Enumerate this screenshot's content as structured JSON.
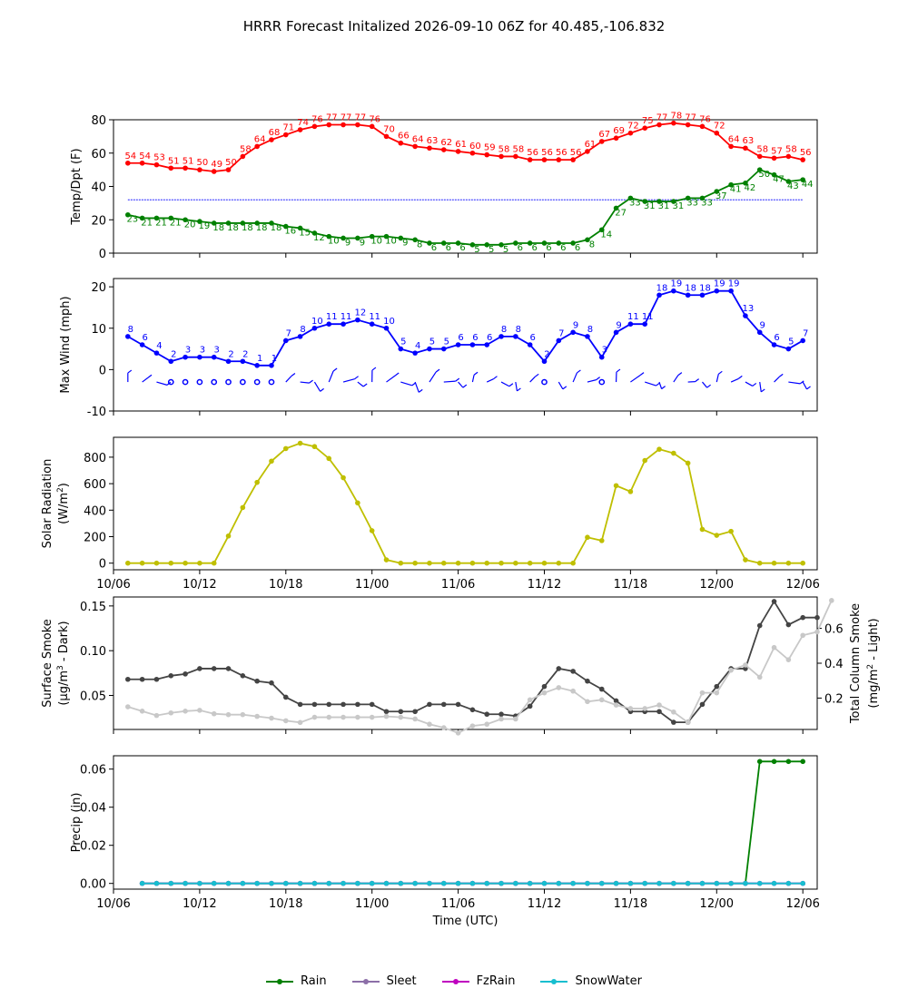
{
  "title": "HRRR Forecast Initalized 2026-09-10 06Z for 40.485,-106.832",
  "colors": {
    "temp": "#ff0000",
    "dew": "#008000",
    "wind": "#0000ff",
    "solar": "#bfbf00",
    "smoke_dark": "#444444",
    "smoke_light": "#c8c8c8",
    "rain": "#008000",
    "sleet": "#8c6fa8",
    "fzrain": "#bf00bf",
    "snow": "#17becf"
  },
  "chart_data": [
    {
      "type": "line",
      "ylabel": "Temp/Dpt (F)",
      "ylim": [
        0,
        80
      ],
      "yticks": [
        0,
        20,
        40,
        60,
        80
      ],
      "xlim": [
        0,
        49
      ],
      "xticks": [
        {
          "x": 0,
          "label": "10/06"
        },
        {
          "x": 6,
          "label": "10/12"
        },
        {
          "x": 12,
          "label": "10/18"
        },
        {
          "x": 18,
          "label": "11/00"
        },
        {
          "x": 24,
          "label": "11/06"
        },
        {
          "x": 30,
          "label": "11/12"
        },
        {
          "x": 36,
          "label": "11/18"
        },
        {
          "x": 42,
          "label": "12/00"
        },
        {
          "x": 48,
          "label": "12/06"
        }
      ],
      "freezing_line": 32,
      "series": [
        {
          "key": "temp",
          "start": 1,
          "values": [
            54,
            54,
            53,
            51,
            51,
            50,
            49,
            50,
            58,
            64,
            68,
            71,
            74,
            76,
            77,
            77,
            77,
            76,
            70,
            66,
            64,
            63,
            62,
            61,
            60,
            59,
            58,
            58,
            56,
            56,
            56,
            56,
            61,
            67,
            69,
            72,
            75,
            77,
            78,
            77,
            76,
            72,
            64,
            63,
            58,
            57,
            58,
            56
          ]
        },
        {
          "key": "dew",
          "start": 1,
          "values": [
            23,
            21,
            21,
            21,
            20,
            19,
            18,
            18,
            18,
            18,
            18,
            16,
            15,
            12,
            10,
            9,
            9,
            10,
            10,
            9,
            8,
            6,
            6,
            6,
            5,
            5,
            5,
            6,
            6,
            6,
            6,
            6,
            8,
            14,
            27,
            33,
            31,
            31,
            31,
            33,
            33,
            37,
            41,
            42,
            50,
            47,
            43,
            44
          ]
        }
      ]
    },
    {
      "type": "line",
      "ylabel": "Max Wind (mph)",
      "ylim": [
        -10,
        22
      ],
      "yticks": [
        -10,
        0,
        10,
        20
      ],
      "xlim": [
        0,
        49
      ],
      "series": [
        {
          "key": "wind",
          "start": 1,
          "values": [
            8,
            6,
            4,
            2,
            3,
            3,
            3,
            2,
            2,
            1,
            1,
            7,
            8,
            10,
            11,
            11,
            12,
            11,
            10,
            5,
            4,
            5,
            5,
            6,
            6,
            6,
            8,
            8,
            6,
            2,
            7,
            9,
            8,
            3,
            9,
            11,
            11,
            18,
            19,
            18,
            18,
            19,
            19,
            13,
            9,
            6,
            5,
            7
          ]
        }
      ],
      "barbs_y": -3
    },
    {
      "type": "line",
      "ylabel": "Solar Radiation",
      "ylabel2": "(W/m",
      "ylabel2_sup": "2",
      "ylabel2_end": ")",
      "ylim": [
        -50,
        950
      ],
      "yticks": [
        0,
        200,
        400,
        600,
        800
      ],
      "xlim": [
        0,
        49
      ],
      "series": [
        {
          "key": "solar",
          "start": 1,
          "values": [
            0,
            0,
            0,
            0,
            0,
            0,
            0,
            205,
            420,
            610,
            770,
            865,
            905,
            880,
            790,
            645,
            455,
            245,
            25,
            0,
            0,
            0,
            0,
            0,
            0,
            0,
            0,
            0,
            0,
            0,
            0,
            0,
            195,
            170,
            585,
            540,
            775,
            860,
            830,
            755,
            255,
            210,
            240,
            25,
            0,
            0,
            0,
            0
          ]
        }
      ]
    },
    {
      "type": "line",
      "ylabel": "Surface Smoke",
      "ylabel2": "(μg/m",
      "ylabel2_sup": "3",
      "ylabel2_end": " - Dark)",
      "ylabel_right": "Total Column Smoke",
      "ylabel_right2": "(mg/m",
      "ylabel_right2_sup": "2",
      "ylabel_right2_end": " - Light)",
      "ylim": [
        0.012,
        0.16
      ],
      "yticks": [
        0.05,
        0.1,
        0.15
      ],
      "ylim_right": [
        0.02,
        0.78
      ],
      "yticks_right": [
        0.2,
        0.4,
        0.6
      ],
      "xlim": [
        0,
        49
      ],
      "series": [
        {
          "key": "smoke_dark",
          "start": 1,
          "values": [
            0.068,
            0.068,
            0.068,
            0.072,
            0.074,
            0.08,
            0.08,
            0.08,
            0.072,
            0.066,
            0.064,
            0.048,
            0.04,
            0.04,
            0.04,
            0.04,
            0.04,
            0.04,
            0.032,
            0.032,
            0.032,
            0.04,
            0.04,
            0.04,
            0.034,
            0.029,
            0.029,
            0.027,
            0.038,
            0.06,
            0.08,
            0.077,
            0.066,
            0.057,
            0.044,
            0.032,
            0.032,
            0.032,
            0.02,
            0.02,
            0.04,
            0.06,
            0.08,
            0.08,
            0.128,
            0.155,
            0.129,
            0.137,
            0.137
          ]
        },
        {
          "key": "smoke_light",
          "axis": "right",
          "start": 1,
          "values": [
            0.15,
            0.125,
            0.1,
            0.115,
            0.125,
            0.13,
            0.11,
            0.105,
            0.105,
            0.095,
            0.085,
            0.07,
            0.06,
            0.09,
            0.09,
            0.09,
            0.09,
            0.09,
            0.095,
            0.09,
            0.08,
            0.05,
            0.03,
            0.0,
            0.04,
            0.05,
            0.08,
            0.08,
            0.19,
            0.23,
            0.26,
            0.24,
            0.18,
            0.19,
            0.16,
            0.14,
            0.14,
            0.16,
            0.12,
            0.06,
            0.23,
            0.23,
            0.36,
            0.39,
            0.32,
            0.49,
            0.42,
            0.56,
            0.58,
            0.76
          ]
        }
      ]
    },
    {
      "type": "line",
      "ylabel": "Precip (in)",
      "xlabel": "Time (UTC)",
      "ylim": [
        -0.003,
        0.067
      ],
      "yticks": [
        0.0,
        0.02,
        0.04,
        0.06
      ],
      "xlim": [
        0,
        49
      ],
      "series": [
        {
          "key": "rain",
          "name": "Rain",
          "start": 2,
          "values": [
            0,
            0,
            0,
            0,
            0,
            0,
            0,
            0,
            0,
            0,
            0,
            0,
            0,
            0,
            0,
            0,
            0,
            0,
            0,
            0,
            0,
            0,
            0,
            0,
            0,
            0,
            0,
            0,
            0,
            0,
            0,
            0,
            0,
            0,
            0,
            0,
            0,
            0,
            0,
            0,
            0,
            0,
            0,
            0.064,
            0.064,
            0.064,
            0.064
          ]
        },
        {
          "key": "sleet",
          "name": "Sleet",
          "start": 2,
          "values": [
            0,
            0,
            0,
            0,
            0,
            0,
            0,
            0,
            0,
            0,
            0,
            0,
            0,
            0,
            0,
            0,
            0,
            0,
            0,
            0,
            0,
            0,
            0,
            0,
            0,
            0,
            0,
            0,
            0,
            0,
            0,
            0,
            0,
            0,
            0,
            0,
            0,
            0,
            0,
            0,
            0,
            0,
            0,
            0,
            0,
            0,
            0
          ]
        },
        {
          "key": "fzrain",
          "name": "FzRain",
          "start": 2,
          "values": [
            0,
            0,
            0,
            0,
            0,
            0,
            0,
            0,
            0,
            0,
            0,
            0,
            0,
            0,
            0,
            0,
            0,
            0,
            0,
            0,
            0,
            0,
            0,
            0,
            0,
            0,
            0,
            0,
            0,
            0,
            0,
            0,
            0,
            0,
            0,
            0,
            0,
            0,
            0,
            0,
            0,
            0,
            0,
            0,
            0,
            0,
            0
          ]
        },
        {
          "key": "snow",
          "name": "SnowWater",
          "start": 2,
          "values": [
            0,
            0,
            0,
            0,
            0,
            0,
            0,
            0,
            0,
            0,
            0,
            0,
            0,
            0,
            0,
            0,
            0,
            0,
            0,
            0,
            0,
            0,
            0,
            0,
            0,
            0,
            0,
            0,
            0,
            0,
            0,
            0,
            0,
            0,
            0,
            0,
            0,
            0,
            0,
            0,
            0,
            0,
            0,
            0,
            0,
            0,
            0
          ]
        }
      ]
    }
  ],
  "legend": [
    {
      "key": "rain",
      "label": "Rain"
    },
    {
      "key": "sleet",
      "label": "Sleet"
    },
    {
      "key": "fzrain",
      "label": "FzRain"
    },
    {
      "key": "snow",
      "label": "SnowWater"
    }
  ]
}
